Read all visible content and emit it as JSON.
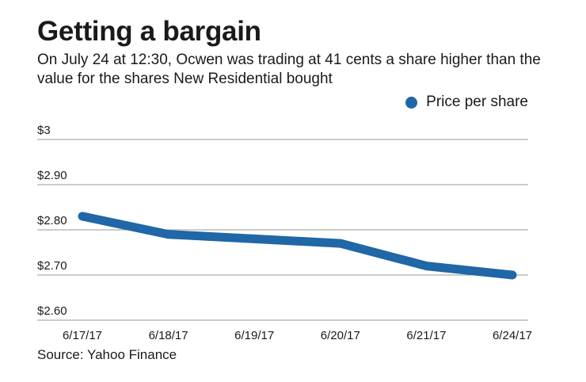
{
  "header": {
    "title": "Getting a bargain",
    "subtitle": "On July 24 at 12:30, Ocwen was trading at 41 cents a share higher than the value for the shares New Residential bought"
  },
  "source": "Source: Yahoo Finance",
  "colors": {
    "series": "#1f67a6",
    "grid": "#9a9a9a",
    "text": "#1a1a1a"
  },
  "chart_data": {
    "type": "line",
    "categories": [
      "6/17/17",
      "6/18/17",
      "6/19/17",
      "6/20/17",
      "6/21/17",
      "6/24/17"
    ],
    "series": [
      {
        "name": "Price per share",
        "values": [
          2.83,
          2.79,
          2.78,
          2.77,
          2.72,
          2.7
        ]
      }
    ],
    "ylim": [
      2.6,
      3.0
    ],
    "yticks": [
      3.0,
      2.9,
      2.8,
      2.7,
      2.6
    ],
    "ytick_labels": [
      "$3",
      "$2.90",
      "$2.80",
      "$2.70",
      "$2.60"
    ],
    "grid": true,
    "legend": "top-right"
  }
}
